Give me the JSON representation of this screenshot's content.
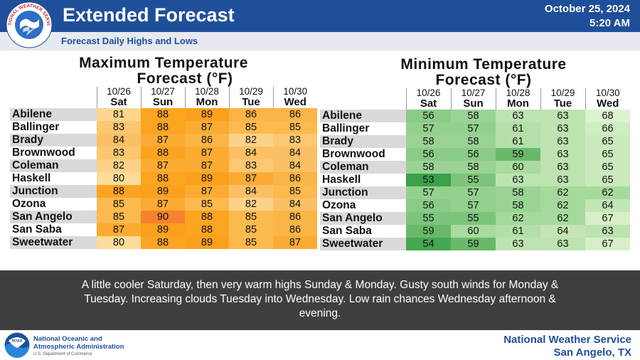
{
  "header": {
    "title": "Extended Forecast",
    "subtitle": "Forecast Daily Highs and Lows",
    "date": "October 25, 2024",
    "time": "5:20 AM",
    "logo_text": "NATIONAL WEATHER SERVICE"
  },
  "days": [
    {
      "date": "10/26",
      "day": "Sat"
    },
    {
      "date": "10/27",
      "day": "Sun"
    },
    {
      "date": "10/28",
      "day": "Mon"
    },
    {
      "date": "10/29",
      "day": "Tue"
    },
    {
      "date": "10/30",
      "day": "Wed"
    }
  ],
  "max_table": {
    "title_line1": "Maximum Temperature",
    "title_line2": "Forecast (°F)",
    "rows": [
      {
        "station": "Abilene",
        "values": [
          81,
          88,
          89,
          86,
          86
        ]
      },
      {
        "station": "Ballinger",
        "values": [
          83,
          88,
          87,
          85,
          85
        ]
      },
      {
        "station": "Brady",
        "values": [
          84,
          87,
          86,
          82,
          83
        ]
      },
      {
        "station": "Brownwood",
        "values": [
          83,
          88,
          87,
          84,
          84
        ]
      },
      {
        "station": "Coleman",
        "values": [
          82,
          87,
          87,
          83,
          84
        ]
      },
      {
        "station": "Haskell",
        "values": [
          80,
          88,
          89,
          87,
          86
        ]
      },
      {
        "station": "Junction",
        "values": [
          88,
          89,
          87,
          84,
          85
        ]
      },
      {
        "station": "Ozona",
        "values": [
          85,
          87,
          85,
          82,
          84
        ]
      },
      {
        "station": "San Angelo",
        "values": [
          85,
          90,
          88,
          85,
          86
        ]
      },
      {
        "station": "San Saba",
        "values": [
          87,
          89,
          88,
          85,
          86
        ]
      },
      {
        "station": "Sweetwater",
        "values": [
          80,
          88,
          89,
          85,
          87
        ]
      }
    ]
  },
  "min_table": {
    "title_line1": "Minimum Temperature",
    "title_line2": "Forecast (°F)",
    "rows": [
      {
        "station": "Abilene",
        "values": [
          56,
          58,
          63,
          63,
          68
        ]
      },
      {
        "station": "Ballinger",
        "values": [
          57,
          57,
          61,
          63,
          66
        ]
      },
      {
        "station": "Brady",
        "values": [
          58,
          58,
          61,
          63,
          65
        ]
      },
      {
        "station": "Brownwood",
        "values": [
          56,
          56,
          59,
          63,
          65
        ]
      },
      {
        "station": "Coleman",
        "values": [
          58,
          58,
          60,
          63,
          65
        ]
      },
      {
        "station": "Haskell",
        "values": [
          53,
          55,
          63,
          63,
          65
        ]
      },
      {
        "station": "Junction",
        "values": [
          57,
          57,
          58,
          62,
          62
        ]
      },
      {
        "station": "Ozona",
        "values": [
          56,
          57,
          58,
          62,
          64
        ]
      },
      {
        "station": "San Angelo",
        "values": [
          55,
          55,
          62,
          62,
          67
        ]
      },
      {
        "station": "San Saba",
        "values": [
          59,
          60,
          61,
          64,
          63
        ]
      },
      {
        "station": "Sweetwater",
        "values": [
          54,
          59,
          63,
          63,
          67
        ]
      }
    ]
  },
  "colors": {
    "max_scale": {
      "80": "#fbdc9a",
      "81": "#fbd68e",
      "82": "#fbd288",
      "83": "#fbc770",
      "84": "#fbc066",
      "85": "#fbb94e",
      "86": "#fbb446",
      "87": "#fbab32",
      "88": "#fba41f",
      "89": "#fba01c",
      "90": "#f7822e"
    },
    "min_scale": {
      "53": "#3aa04a",
      "54": "#45a852",
      "55": "#7cc47b",
      "56": "#8acb86",
      "57": "#94d08e",
      "58": "#9ad394",
      "59": "#6ab96a",
      "60": "#a9db9f",
      "61": "#b4dfa9",
      "62": "#a6d99c",
      "63": "#bde3b0",
      "64": "#c4e6b6",
      "65": "#caeabd",
      "66": "#d0ecc2",
      "67": "#d6efc8",
      "68": "#ddf2ce"
    }
  },
  "discussion": "A little cooler Saturday, then very warm highs Sunday & Monday. Gusty south winds for Monday & Tuesday. Increasing clouds Tuesday into Wednesday. Low rain chances Wednesday afternoon & evening.",
  "footer": {
    "noaa_line1": "National Oceanic and",
    "noaa_line2": "Atmospheric Administration",
    "noaa_dept": "U.S. Department of Commerce",
    "noaa_logo_text": "NOAA",
    "office_line1": "National Weather Service",
    "office_line2": "San Angelo, TX"
  }
}
